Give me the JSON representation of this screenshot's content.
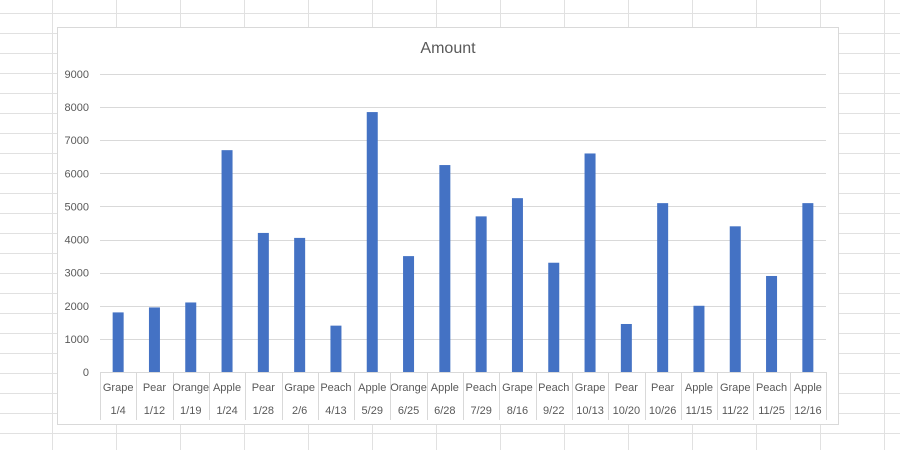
{
  "chart_data": {
    "type": "bar",
    "title": "Amount",
    "xlabel": "",
    "ylabel": "",
    "ylim": [
      0,
      9000
    ],
    "yticks": [
      0,
      1000,
      2000,
      3000,
      4000,
      5000,
      6000,
      7000,
      8000,
      9000
    ],
    "grid": true,
    "legend": "none",
    "bar_color": "#4472c4",
    "categories": [
      {
        "fruit": "Grape",
        "date": "1/4"
      },
      {
        "fruit": "Pear",
        "date": "1/12"
      },
      {
        "fruit": "Orange",
        "date": "1/19"
      },
      {
        "fruit": "Apple",
        "date": "1/24"
      },
      {
        "fruit": "Pear",
        "date": "1/28"
      },
      {
        "fruit": "Grape",
        "date": "2/6"
      },
      {
        "fruit": "Peach",
        "date": "4/13"
      },
      {
        "fruit": "Apple",
        "date": "5/29"
      },
      {
        "fruit": "Orange",
        "date": "6/25"
      },
      {
        "fruit": "Apple",
        "date": "6/28"
      },
      {
        "fruit": "Peach",
        "date": "7/29"
      },
      {
        "fruit": "Grape",
        "date": "8/16"
      },
      {
        "fruit": "Peach",
        "date": "9/22"
      },
      {
        "fruit": "Grape",
        "date": "10/13"
      },
      {
        "fruit": "Pear",
        "date": "10/20"
      },
      {
        "fruit": "Pear",
        "date": "10/26"
      },
      {
        "fruit": "Apple",
        "date": "11/15"
      },
      {
        "fruit": "Grape",
        "date": "11/22"
      },
      {
        "fruit": "Peach",
        "date": "11/25"
      },
      {
        "fruit": "Apple",
        "date": "12/16"
      }
    ],
    "values": [
      1800,
      1950,
      2100,
      6700,
      4200,
      4050,
      1400,
      7850,
      3500,
      6250,
      4700,
      5250,
      3300,
      6600,
      1450,
      5100,
      2000,
      4400,
      2900,
      5100
    ]
  }
}
